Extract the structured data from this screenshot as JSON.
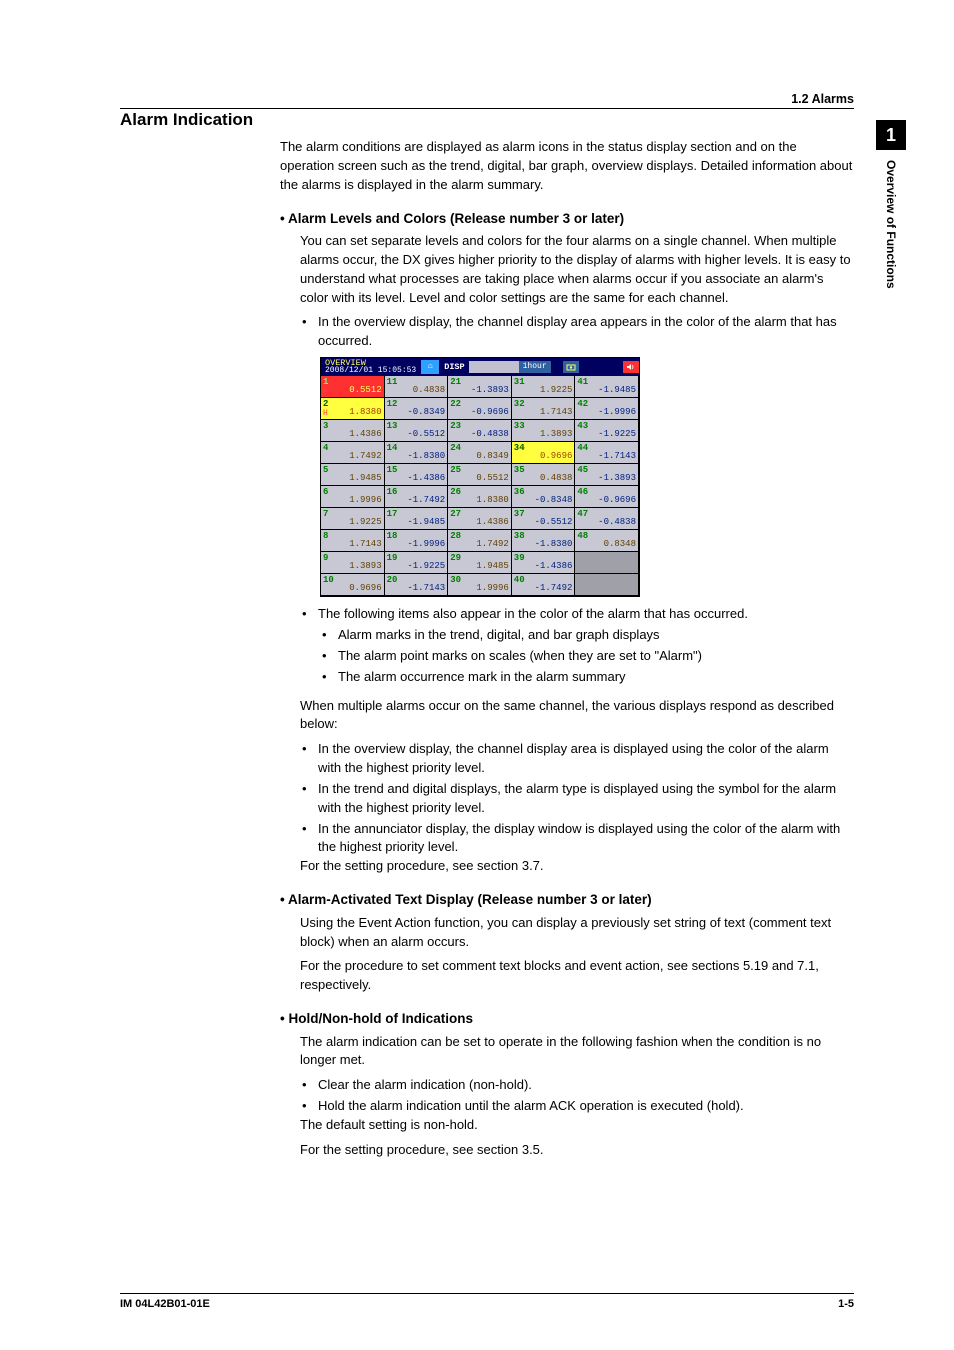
{
  "header": {
    "section": "1.2 Alarms"
  },
  "sidetab": {
    "num": "1",
    "text": "Overview of Functions"
  },
  "title": "Alarm Indication",
  "intro": "The alarm conditions are displayed as alarm icons in the status display section and on the operation screen such as the trend, digital, bar graph, overview displays. Detailed information about the alarms is displayed in the alarm summary.",
  "s1": {
    "title": "•  Alarm Levels and Colors (Release number 3 or later)",
    "p1": "You can set separate levels and colors for the four alarms on a single channel. When multiple alarms occur, the DX gives higher priority to the display of alarms with higher levels. It is easy to understand what processes are taking place when alarms occur if you associate an alarm's color with its level. Level and color settings are the same for each channel.",
    "b1": "In the overview display, the channel display area appears in the color of the alarm that has occurred.",
    "after_ov": "The following items also appear in the color of the alarm that has occurred.",
    "sb1": "Alarm marks in the trend, digital, and bar graph displays",
    "sb2": "The alarm point marks on scales (when they are set to \"Alarm\")",
    "sb3": "The alarm occurrence mark in the alarm summary",
    "p2": "When multiple alarms occur on the same channel, the various displays respond as described below:",
    "c1": "In the overview display, the channel display area is displayed using the color of the alarm with the highest priority level.",
    "c2": "In the trend and digital displays, the alarm type is displayed using the symbol for the alarm with the highest priority level.",
    "c3": "In the annunciator display, the display window is displayed using the color of the alarm with the highest priority level.",
    "p3": "For the setting procedure, see section 3.7."
  },
  "s2": {
    "title": "•  Alarm-Activated Text Display (Release number 3 or later)",
    "p1": "Using the Event Action function, you can display a previously set string of text (comment text block) when an alarm occurs.",
    "p2": "For the procedure to set comment text blocks and event action, see sections 5.19 and 7.1, respectively."
  },
  "s3": {
    "title": "•  Hold/Non-hold of Indications",
    "p1": "The alarm indication can be set to operate in the following fashion when the condition is no longer met.",
    "b1": "Clear the alarm indication (non-hold).",
    "b2": "Hold the alarm indication until the alarm ACK operation is executed (hold).",
    "p2": "The default setting is non-hold.",
    "p3": "For the setting procedure, see section 3.5."
  },
  "ov": {
    "bar": {
      "title": "OVERVIEW",
      "ts": "2008/12/01 15:05:53",
      "disp": "DISP",
      "onehour": "1hour"
    },
    "cells": [
      {
        "ch": "1",
        "val": "0.5512",
        "bg": "#ff3030",
        "chc": "#60ff60",
        "vc": "#ffff60",
        "h": "H"
      },
      {
        "ch": "11",
        "val": "0.4838",
        "bg": "#c8c8d4",
        "chc": "#008000",
        "vc": "#604000"
      },
      {
        "ch": "21",
        "val": "-1.3893",
        "bg": "#c8c8d4",
        "chc": "#008000",
        "vc": "#002080"
      },
      {
        "ch": "31",
        "val": "1.9225",
        "bg": "#c8c8d4",
        "chc": "#008000",
        "vc": "#604000"
      },
      {
        "ch": "41",
        "val": "-1.9485",
        "bg": "#c8c8d4",
        "chc": "#008000",
        "vc": "#002080"
      },
      {
        "ch": "2",
        "val": "1.8380",
        "bg": "#ffff40",
        "chc": "#006000",
        "vc": "#a04000",
        "h": "H"
      },
      {
        "ch": "12",
        "val": "-0.8349",
        "bg": "#c8c8d4",
        "chc": "#008000",
        "vc": "#002080"
      },
      {
        "ch": "22",
        "val": "-0.9696",
        "bg": "#c8c8d4",
        "chc": "#008000",
        "vc": "#002080"
      },
      {
        "ch": "32",
        "val": "1.7143",
        "bg": "#c8c8d4",
        "chc": "#008000",
        "vc": "#604000"
      },
      {
        "ch": "42",
        "val": "-1.9996",
        "bg": "#c8c8d4",
        "chc": "#008000",
        "vc": "#002080"
      },
      {
        "ch": "3",
        "val": "1.4386",
        "bg": "#c8c8d4",
        "chc": "#008000",
        "vc": "#604000"
      },
      {
        "ch": "13",
        "val": "-0.5512",
        "bg": "#c8c8d4",
        "chc": "#008000",
        "vc": "#002080"
      },
      {
        "ch": "23",
        "val": "-0.4838",
        "bg": "#c8c8d4",
        "chc": "#008000",
        "vc": "#002080"
      },
      {
        "ch": "33",
        "val": "1.3893",
        "bg": "#c8c8d4",
        "chc": "#008000",
        "vc": "#604000"
      },
      {
        "ch": "43",
        "val": "-1.9225",
        "bg": "#c8c8d4",
        "chc": "#008000",
        "vc": "#002080"
      },
      {
        "ch": "4",
        "val": "1.7492",
        "bg": "#c8c8d4",
        "chc": "#008000",
        "vc": "#604000"
      },
      {
        "ch": "14",
        "val": "-1.8380",
        "bg": "#c8c8d4",
        "chc": "#008000",
        "vc": "#002080"
      },
      {
        "ch": "24",
        "val": "0.8349",
        "bg": "#c8c8d4",
        "chc": "#008000",
        "vc": "#604000"
      },
      {
        "ch": "34",
        "val": "0.9696",
        "bg": "#ffff40",
        "chc": "#006000",
        "vc": "#a04000"
      },
      {
        "ch": "44",
        "val": "-1.7143",
        "bg": "#c8c8d4",
        "chc": "#008000",
        "vc": "#002080"
      },
      {
        "ch": "5",
        "val": "1.9485",
        "bg": "#c8c8d4",
        "chc": "#008000",
        "vc": "#604000"
      },
      {
        "ch": "15",
        "val": "-1.4386",
        "bg": "#c8c8d4",
        "chc": "#008000",
        "vc": "#002080"
      },
      {
        "ch": "25",
        "val": "0.5512",
        "bg": "#c8c8d4",
        "chc": "#008000",
        "vc": "#604000"
      },
      {
        "ch": "35",
        "val": "0.4838",
        "bg": "#c8c8d4",
        "chc": "#008000",
        "vc": "#604000"
      },
      {
        "ch": "45",
        "val": "-1.3893",
        "bg": "#c8c8d4",
        "chc": "#008000",
        "vc": "#002080"
      },
      {
        "ch": "6",
        "val": "1.9996",
        "bg": "#c8c8d4",
        "chc": "#008000",
        "vc": "#604000"
      },
      {
        "ch": "16",
        "val": "-1.7492",
        "bg": "#c8c8d4",
        "chc": "#008000",
        "vc": "#002080"
      },
      {
        "ch": "26",
        "val": "1.8380",
        "bg": "#c8c8d4",
        "chc": "#008000",
        "vc": "#604000"
      },
      {
        "ch": "36",
        "val": "-0.8348",
        "bg": "#c8c8d4",
        "chc": "#008000",
        "vc": "#002080"
      },
      {
        "ch": "46",
        "val": "-0.9696",
        "bg": "#c8c8d4",
        "chc": "#008000",
        "vc": "#002080"
      },
      {
        "ch": "7",
        "val": "1.9225",
        "bg": "#c8c8d4",
        "chc": "#008000",
        "vc": "#604000"
      },
      {
        "ch": "17",
        "val": "-1.9485",
        "bg": "#c8c8d4",
        "chc": "#008000",
        "vc": "#002080"
      },
      {
        "ch": "27",
        "val": "1.4386",
        "bg": "#c8c8d4",
        "chc": "#008000",
        "vc": "#604000"
      },
      {
        "ch": "37",
        "val": "-0.5512",
        "bg": "#c8c8d4",
        "chc": "#008000",
        "vc": "#002080"
      },
      {
        "ch": "47",
        "val": "-0.4838",
        "bg": "#c8c8d4",
        "chc": "#008000",
        "vc": "#002080"
      },
      {
        "ch": "8",
        "val": "1.7143",
        "bg": "#c8c8d4",
        "chc": "#008000",
        "vc": "#604000"
      },
      {
        "ch": "18",
        "val": "-1.9996",
        "bg": "#c8c8d4",
        "chc": "#008000",
        "vc": "#002080"
      },
      {
        "ch": "28",
        "val": "1.7492",
        "bg": "#c8c8d4",
        "chc": "#008000",
        "vc": "#604000"
      },
      {
        "ch": "38",
        "val": "-1.8380",
        "bg": "#c8c8d4",
        "chc": "#008000",
        "vc": "#002080"
      },
      {
        "ch": "48",
        "val": "0.8348",
        "bg": "#c8c8d4",
        "chc": "#008000",
        "vc": "#604000"
      },
      {
        "ch": "9",
        "val": "1.3893",
        "bg": "#c8c8d4",
        "chc": "#008000",
        "vc": "#604000"
      },
      {
        "ch": "19",
        "val": "-1.9225",
        "bg": "#c8c8d4",
        "chc": "#008000",
        "vc": "#002080"
      },
      {
        "ch": "29",
        "val": "1.9485",
        "bg": "#c8c8d4",
        "chc": "#008000",
        "vc": "#604000"
      },
      {
        "ch": "39",
        "val": "-1.4386",
        "bg": "#c8c8d4",
        "chc": "#008000",
        "vc": "#002080"
      },
      {
        "empty": true
      },
      {
        "ch": "10",
        "val": "0.9696",
        "bg": "#c8c8d4",
        "chc": "#008000",
        "vc": "#604000"
      },
      {
        "ch": "20",
        "val": "-1.7143",
        "bg": "#c8c8d4",
        "chc": "#008000",
        "vc": "#002080"
      },
      {
        "ch": "30",
        "val": "1.9996",
        "bg": "#c8c8d4",
        "chc": "#008000",
        "vc": "#604000"
      },
      {
        "ch": "40",
        "val": "-1.7492",
        "bg": "#c8c8d4",
        "chc": "#008000",
        "vc": "#002080"
      },
      {
        "empty": true
      }
    ]
  },
  "footer": {
    "left": "IM 04L42B01-01E",
    "right": "1-5"
  }
}
